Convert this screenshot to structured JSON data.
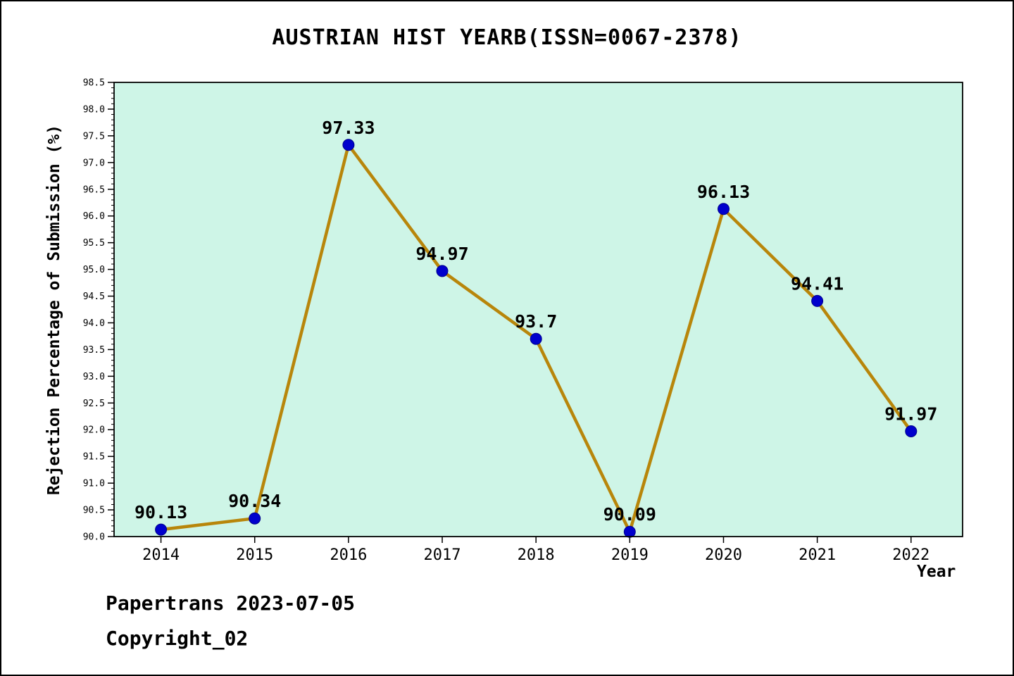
{
  "title": "AUSTRIAN HIST YEARB(ISSN=0067-2378)",
  "footer": {
    "line1": "Papertrans 2023-07-05",
    "line2": "Copyright_02"
  },
  "chart_data": {
    "type": "line",
    "title": "AUSTRIAN HIST YEARB(ISSN=0067-2378)",
    "xlabel": "Year",
    "ylabel": "Rejection Percentage of Submission (%)",
    "x": [
      2014,
      2015,
      2016,
      2017,
      2018,
      2019,
      2020,
      2021,
      2022
    ],
    "values": [
      90.13,
      90.34,
      97.33,
      94.97,
      93.7,
      90.09,
      96.13,
      94.41,
      91.97
    ],
    "point_labels": [
      "90.13",
      "90.34",
      "97.33",
      "94.97",
      "93.7",
      "90.09",
      "96.13",
      "94.41",
      "91.97"
    ],
    "ylim": [
      90.0,
      98.5
    ],
    "ytick_step": 0.5,
    "ytick_minor_step": 0.1,
    "xlim": [
      2013.5,
      2022.55
    ],
    "grid": false,
    "legend": null,
    "colors": {
      "line": "#b8860b",
      "marker": "#0000cd",
      "marker_edge": "#00008b",
      "plot_bg": "#cef5e7",
      "page_bg": "#ffffff",
      "axis": "#000000",
      "text": "#000000"
    }
  }
}
